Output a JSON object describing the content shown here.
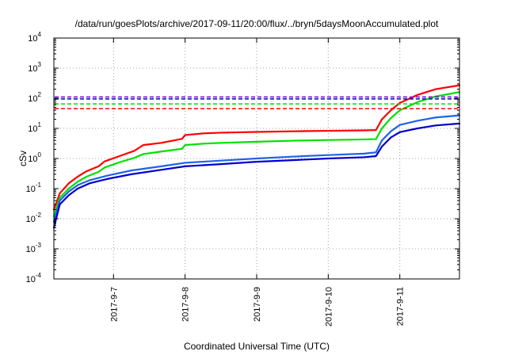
{
  "chart_data": {
    "type": "line",
    "title": "/data/run/goesPlots/archive/2017-09-11/20:00/flux/../bryn/5daysMoonAccumulated.plot",
    "xlabel": "Coordinated Universal Time (UTC)",
    "ylabel": "cSv",
    "y_scale": "log",
    "ylim": [
      0.0001,
      10000
    ],
    "y_ticks": [
      {
        "value": 0.0001,
        "base": "10",
        "exp": "-4"
      },
      {
        "value": 0.001,
        "base": "10",
        "exp": "-3"
      },
      {
        "value": 0.01,
        "base": "10",
        "exp": "-2"
      },
      {
        "value": 0.1,
        "base": "10",
        "exp": "-1"
      },
      {
        "value": 1,
        "base": "10",
        "exp": "0"
      },
      {
        "value": 10,
        "base": "10",
        "exp": "1"
      },
      {
        "value": 100,
        "base": "10",
        "exp": "2"
      },
      {
        "value": 1000,
        "base": "10",
        "exp": "3"
      },
      {
        "value": 10000,
        "base": "10",
        "exp": "4"
      }
    ],
    "xlim": [
      "2017-09-06 04:00",
      "2017-09-11 20:00"
    ],
    "x_ticks": [
      "2017-9-7",
      "2017-9-8",
      "2017-9-9",
      "2017-9-10",
      "2017-9-11"
    ],
    "grid": true,
    "series": [
      {
        "color": "#ff0000",
        "style": "solid",
        "points": [
          [
            "2017-09-06 04:00",
            0.02
          ],
          [
            "2017-09-06 06:00",
            0.07
          ],
          [
            "2017-09-06 09:00",
            0.15
          ],
          [
            "2017-09-06 12:00",
            0.25
          ],
          [
            "2017-09-06 15:00",
            0.38
          ],
          [
            "2017-09-06 19:00",
            0.55
          ],
          [
            "2017-09-06 21:00",
            0.8
          ],
          [
            "2017-09-07 02:00",
            1.2
          ],
          [
            "2017-09-07 07:00",
            1.8
          ],
          [
            "2017-09-07 10:00",
            2.8
          ],
          [
            "2017-09-07 16:00",
            3.3
          ],
          [
            "2017-09-07 23:00",
            4.5
          ],
          [
            "2017-09-08 00:00",
            6.0
          ],
          [
            "2017-09-08 06:00",
            6.8
          ],
          [
            "2017-09-08 12:00",
            7.2
          ],
          [
            "2017-09-09 00:00",
            7.6
          ],
          [
            "2017-09-09 12:00",
            8.0
          ],
          [
            "2017-09-10 00:00",
            8.3
          ],
          [
            "2017-09-10 12:00",
            8.6
          ],
          [
            "2017-09-10 16:00",
            8.8
          ],
          [
            "2017-09-10 18:00",
            20
          ],
          [
            "2017-09-10 21:00",
            40
          ],
          [
            "2017-09-11 00:00",
            70
          ],
          [
            "2017-09-11 06:00",
            130
          ],
          [
            "2017-09-11 12:00",
            200
          ],
          [
            "2017-09-11 20:00",
            270
          ]
        ]
      },
      {
        "color": "#00e000",
        "style": "solid",
        "points": [
          [
            "2017-09-06 04:00",
            0.012
          ],
          [
            "2017-09-06 06:00",
            0.05
          ],
          [
            "2017-09-06 09:00",
            0.1
          ],
          [
            "2017-09-06 12:00",
            0.17
          ],
          [
            "2017-09-06 15:00",
            0.25
          ],
          [
            "2017-09-06 19:00",
            0.36
          ],
          [
            "2017-09-06 21:00",
            0.5
          ],
          [
            "2017-09-07 02:00",
            0.75
          ],
          [
            "2017-09-07 07:00",
            1.05
          ],
          [
            "2017-09-07 10:00",
            1.4
          ],
          [
            "2017-09-07 16:00",
            1.7
          ],
          [
            "2017-09-07 23:00",
            2.1
          ],
          [
            "2017-09-08 00:00",
            2.8
          ],
          [
            "2017-09-08 06:00",
            3.1
          ],
          [
            "2017-09-08 12:00",
            3.3
          ],
          [
            "2017-09-09 00:00",
            3.6
          ],
          [
            "2017-09-09 12:00",
            3.9
          ],
          [
            "2017-09-10 00:00",
            4.1
          ],
          [
            "2017-09-10 12:00",
            4.3
          ],
          [
            "2017-09-10 16:00",
            4.4
          ],
          [
            "2017-09-10 18:00",
            10
          ],
          [
            "2017-09-10 21:00",
            22
          ],
          [
            "2017-09-11 00:00",
            40
          ],
          [
            "2017-09-11 06:00",
            75
          ],
          [
            "2017-09-11 12:00",
            115
          ],
          [
            "2017-09-11 20:00",
            160
          ]
        ]
      },
      {
        "color": "#1e64e6",
        "style": "solid",
        "points": [
          [
            "2017-09-06 04:00",
            0.008
          ],
          [
            "2017-09-06 06:00",
            0.04
          ],
          [
            "2017-09-06 09:00",
            0.08
          ],
          [
            "2017-09-06 12:00",
            0.13
          ],
          [
            "2017-09-06 16:00",
            0.19
          ],
          [
            "2017-09-06 22:00",
            0.27
          ],
          [
            "2017-09-07 06:00",
            0.4
          ],
          [
            "2017-09-07 16:00",
            0.55
          ],
          [
            "2017-09-08 00:00",
            0.72
          ],
          [
            "2017-09-08 12:00",
            0.85
          ],
          [
            "2017-09-09 00:00",
            1.0
          ],
          [
            "2017-09-09 12:00",
            1.15
          ],
          [
            "2017-09-10 00:00",
            1.3
          ],
          [
            "2017-09-10 12:00",
            1.45
          ],
          [
            "2017-09-10 16:00",
            1.6
          ],
          [
            "2017-09-10 18:00",
            4
          ],
          [
            "2017-09-10 21:00",
            8
          ],
          [
            "2017-09-11 00:00",
            13
          ],
          [
            "2017-09-11 06:00",
            18
          ],
          [
            "2017-09-11 12:00",
            23
          ],
          [
            "2017-09-11 20:00",
            27
          ]
        ]
      },
      {
        "color": "#0000cc",
        "style": "solid",
        "points": [
          [
            "2017-09-06 04:00",
            0.005
          ],
          [
            "2017-09-06 06:00",
            0.03
          ],
          [
            "2017-09-06 09:00",
            0.06
          ],
          [
            "2017-09-06 12:00",
            0.1
          ],
          [
            "2017-09-06 16:00",
            0.15
          ],
          [
            "2017-09-06 22:00",
            0.21
          ],
          [
            "2017-09-07 06:00",
            0.3
          ],
          [
            "2017-09-07 16:00",
            0.42
          ],
          [
            "2017-09-08 00:00",
            0.55
          ],
          [
            "2017-09-08 12:00",
            0.65
          ],
          [
            "2017-09-09 00:00",
            0.78
          ],
          [
            "2017-09-09 12:00",
            0.88
          ],
          [
            "2017-09-10 00:00",
            1.0
          ],
          [
            "2017-09-10 12:00",
            1.1
          ],
          [
            "2017-09-10 16:00",
            1.2
          ],
          [
            "2017-09-10 18:00",
            2.5
          ],
          [
            "2017-09-10 21:00",
            5
          ],
          [
            "2017-09-11 00:00",
            7.5
          ],
          [
            "2017-09-11 06:00",
            10
          ],
          [
            "2017-09-11 12:00",
            12.5
          ],
          [
            "2017-09-11 20:00",
            14.5
          ]
        ]
      },
      {
        "color": "#8800cc",
        "style": "dashed",
        "constant": 110
      },
      {
        "color": "#0000cc",
        "style": "dashed",
        "constant": 95
      },
      {
        "color": "#00e000",
        "style": "dashed",
        "constant": 65
      },
      {
        "color": "#ff0000",
        "style": "dashed",
        "constant": 45
      }
    ]
  }
}
